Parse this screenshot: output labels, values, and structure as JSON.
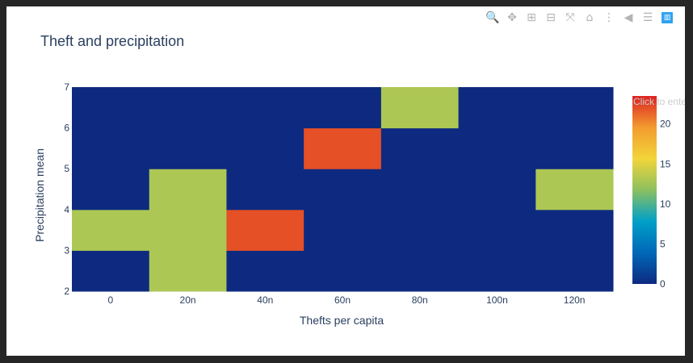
{
  "modebar": {
    "buttons": [
      {
        "name": "zoom-icon",
        "glyph": "🔍",
        "active": true
      },
      {
        "name": "pan-icon",
        "glyph": "✥",
        "active": false
      },
      {
        "name": "zoom-in-icon",
        "glyph": "⊞",
        "active": false
      },
      {
        "name": "zoom-out-icon",
        "glyph": "⊟",
        "active": false
      },
      {
        "name": "autoscale-icon",
        "glyph": "⤧",
        "active": false
      },
      {
        "name": "home-icon",
        "glyph": "⌂",
        "active": false
      },
      {
        "name": "spike-lines-icon",
        "glyph": "⋮",
        "active": false
      },
      {
        "name": "hover-closest-icon",
        "glyph": "◀",
        "active": false
      },
      {
        "name": "hover-compare-icon",
        "glyph": "☰",
        "active": false
      },
      {
        "name": "plotly-logo-icon",
        "glyph": "▥",
        "active": false
      }
    ]
  },
  "colorbar_hint": "Click to enter",
  "chart_data": {
    "type": "heatmap",
    "title": "Theft and precipitation",
    "xlabel": "Thefts per capita",
    "ylabel": "Precipitation mean",
    "x_tick_labels": [
      "0",
      "20n",
      "40n",
      "60n",
      "80n",
      "100n",
      "120n"
    ],
    "y_tick_labels": [
      "2",
      "3",
      "4",
      "5",
      "6",
      "7"
    ],
    "y_bins": [
      [
        2,
        3
      ],
      [
        3,
        4
      ],
      [
        4,
        5
      ],
      [
        5,
        6
      ],
      [
        6,
        7
      ]
    ],
    "z": [
      [
        0,
        13,
        0,
        0,
        0,
        0,
        0
      ],
      [
        13,
        13,
        22,
        0,
        0,
        0,
        0
      ],
      [
        0,
        13,
        0,
        0,
        0,
        0,
        13
      ],
      [
        0,
        0,
        0,
        22,
        0,
        0,
        0
      ],
      [
        0,
        0,
        0,
        0,
        13,
        0,
        0
      ]
    ],
    "zlim": [
      0,
      23.5
    ],
    "colorbar_ticks": [
      0,
      5,
      10,
      15,
      20
    ],
    "colorscale": [
      "#0d2a80",
      "#0068b8",
      "#00a0c8",
      "#8cc060",
      "#f2d53a",
      "#f29b2f",
      "#dd2222"
    ]
  }
}
